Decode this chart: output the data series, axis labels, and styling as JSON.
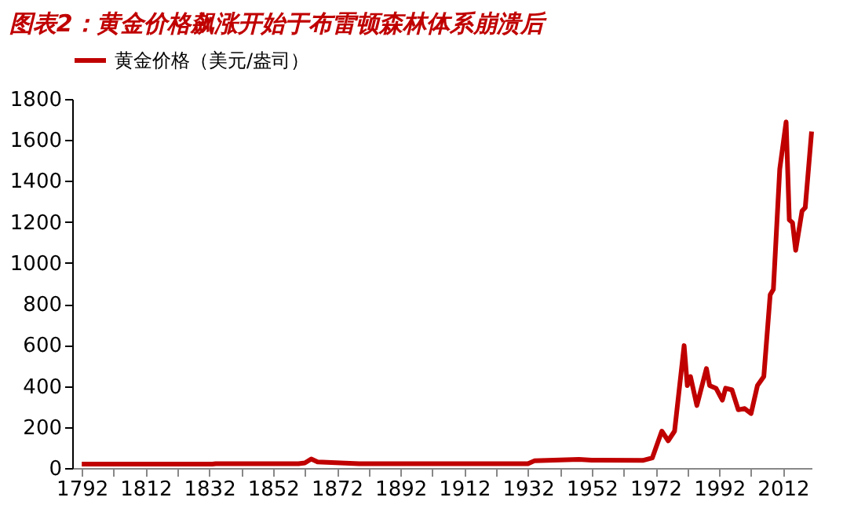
{
  "chart_data": {
    "type": "line",
    "title": "图表2：黄金价格飙涨开始于布雷顿森林体系崩溃后",
    "x": [
      1792,
      1833,
      1834,
      1860,
      1862,
      1864,
      1866,
      1879,
      1932,
      1934,
      1948,
      1952,
      1968,
      1971,
      1974,
      1976,
      1978,
      1981,
      1982,
      1983,
      1985,
      1988,
      1989,
      1991,
      1993,
      1994,
      1996,
      1998,
      2000,
      2002,
      2004,
      2006,
      2008,
      2009,
      2011,
      2013,
      2014,
      2015,
      2016,
      2018,
      2019,
      2021
    ],
    "series": [
      {
        "name": "黄金价格（美元/盎司）",
        "color": "#c00000",
        "values": [
          19,
          19,
          21,
          21,
          25,
          44,
          30,
          21,
          21,
          35,
          42,
          38,
          37,
          49,
          180,
          133,
          180,
          597,
          402,
          446,
          305,
          485,
          402,
          389,
          331,
          389,
          381,
          284,
          290,
          266,
          402,
          446,
          845,
          871,
          1458,
          1688,
          1210,
          1197,
          1062,
          1254,
          1270,
          1641
        ]
      }
    ],
    "xlim": [
      1789,
      2021
    ],
    "xticks": [
      1792,
      {
        "value": 1802,
        "label": null
      },
      1812,
      {
        "value": 1822,
        "label": null
      },
      1832,
      {
        "value": 1842,
        "label": null
      },
      1852,
      {
        "value": 1862,
        "label": null
      },
      1872,
      {
        "value": 1882,
        "label": null
      },
      1892,
      {
        "value": 1902,
        "label": null
      },
      1912,
      {
        "value": 1922,
        "label": null
      },
      1932,
      {
        "value": 1942,
        "label": null
      },
      1952,
      {
        "value": 1962,
        "label": null
      },
      1972,
      {
        "value": 1982,
        "label": null
      },
      1992,
      {
        "value": 2002,
        "label": null
      },
      2012
    ],
    "ylim": [
      0,
      1800
    ],
    "yticks": [
      0,
      200,
      400,
      600,
      800,
      1000,
      1200,
      1400,
      1600,
      1800
    ],
    "grid": false,
    "legend": "top",
    "marker": "none",
    "line_style": "solid"
  }
}
